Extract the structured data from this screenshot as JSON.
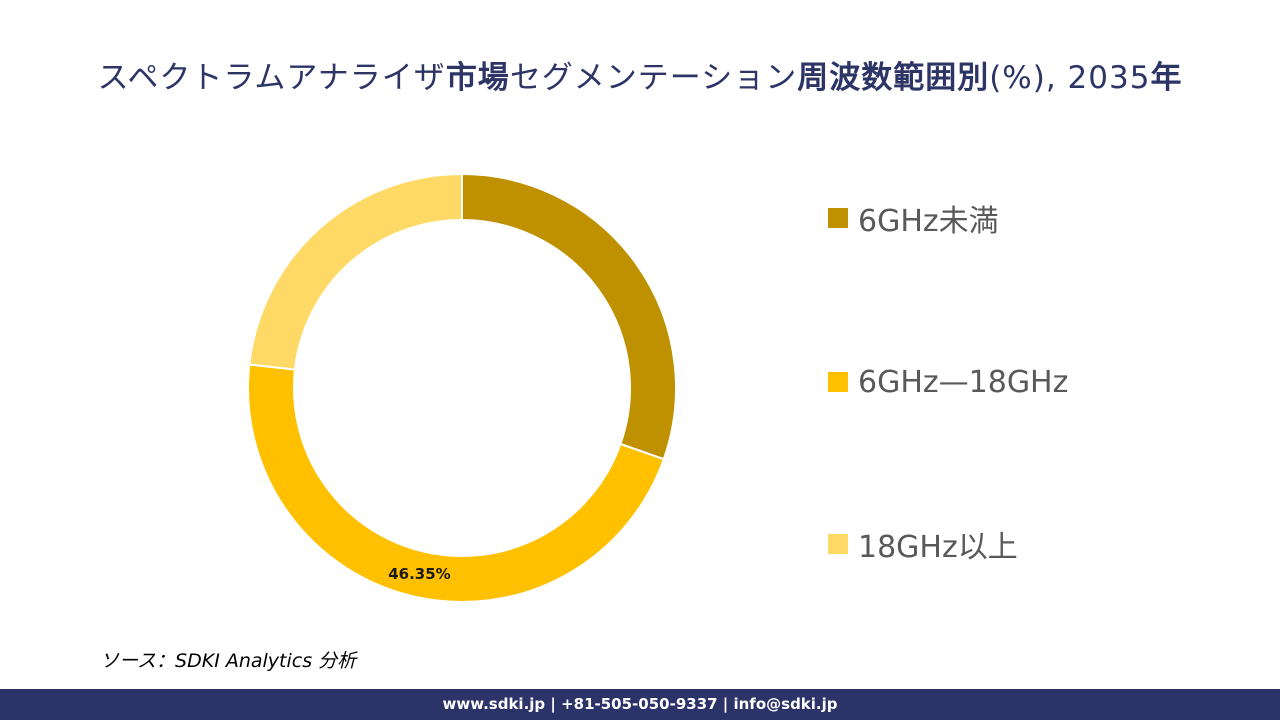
{
  "title": {
    "part1": "スペクトラムアナライザ",
    "part2": "市場",
    "part3": "セグメンテーション",
    "part4": "周波数範囲別",
    "part5": "(%), 2035",
    "part6": "年"
  },
  "chart_data": {
    "type": "pie",
    "style": "donut",
    "title": "スペクトラムアナライザ市場セグメンテーション周波数範囲別(%), 2035年",
    "categories": [
      "6GHz未満",
      "6GHz—18GHz",
      "18GHz以上"
    ],
    "values": [
      30.4,
      46.35,
      23.25
    ],
    "data_labels": [
      "",
      "46.35%",
      ""
    ],
    "colors": [
      "#bf9000",
      "#ffc000",
      "#ffd966"
    ],
    "legend_position": "right"
  },
  "source": "ソース：SDKI Analytics 分析",
  "footer": "www.sdki.jp | +81-505-050-9337 | info@sdki.jp"
}
